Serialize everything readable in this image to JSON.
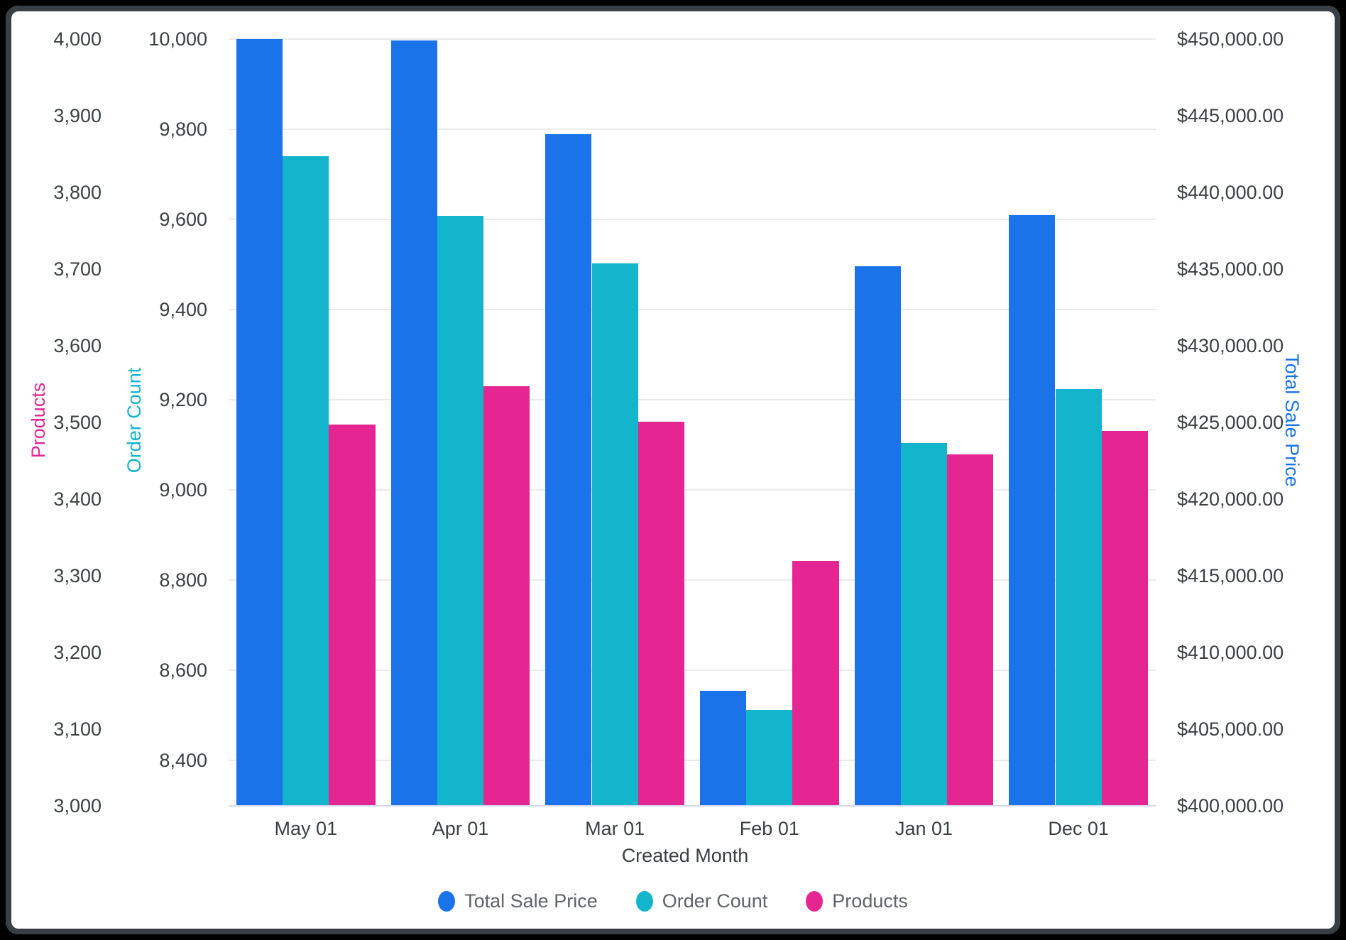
{
  "chart_data": {
    "type": "bar",
    "categories": [
      "May 01",
      "Apr 01",
      "Mar 01",
      "Feb 01",
      "Jan 01",
      "Dec 01"
    ],
    "xlabel": "Created Month",
    "legend_position": "bottom",
    "grid": "horizontal",
    "background": "#FFFFFF",
    "frame_border_color": "#3A3F46",
    "outer_background": "#000000",
    "series": [
      {
        "name": "Total Sale Price",
        "axis": "price",
        "color": "#1A73E8",
        "values": [
          450000,
          449900,
          443800,
          407500,
          435200,
          438500
        ]
      },
      {
        "name": "Order Count",
        "axis": "orders",
        "color": "#12B5CB",
        "values": [
          9740,
          9608,
          9503,
          8512,
          9104,
          9224
        ]
      },
      {
        "name": "Products",
        "axis": "products",
        "color": "#E52592",
        "values": [
          3497,
          3547,
          3501,
          3319,
          3458,
          3489
        ]
      }
    ],
    "axes": {
      "products": {
        "title": "Products",
        "color": "#E52592",
        "side": "left-outer",
        "range": [
          3000,
          4000
        ],
        "tick_values": [
          4000,
          3900,
          3800,
          3700,
          3600,
          3500,
          3400,
          3300,
          3200,
          3100,
          3000
        ],
        "tick_labels": [
          "4,000",
          "3,900",
          "3,800",
          "3,700",
          "3,600",
          "3,500",
          "3,400",
          "3,300",
          "3,200",
          "3,100",
          "3,000"
        ]
      },
      "orders": {
        "title": "Order Count",
        "color": "#12B5CB",
        "side": "left-inner",
        "gridlines": true,
        "range": [
          8300,
          10000
        ],
        "tick_values": [
          10000,
          9800,
          9600,
          9400,
          9200,
          9000,
          8800,
          8600,
          8400
        ],
        "tick_labels": [
          "10,000",
          "9,800",
          "9,600",
          "9,400",
          "9,200",
          "9,000",
          "8,800",
          "8,600",
          "8,400"
        ]
      },
      "price": {
        "title": "Total Sale Price",
        "color": "#1A73E8",
        "side": "right",
        "range": [
          400000,
          450000
        ],
        "tick_values": [
          450000,
          445000,
          440000,
          435000,
          430000,
          425000,
          420000,
          415000,
          410000,
          405000,
          400000
        ],
        "tick_labels": [
          "$450,000.00",
          "$445,000.00",
          "$440,000.00",
          "$435,000.00",
          "$430,000.00",
          "$425,000.00",
          "$420,000.00",
          "$415,000.00",
          "$410,000.00",
          "$405,000.00",
          "$400,000.00"
        ]
      }
    }
  }
}
